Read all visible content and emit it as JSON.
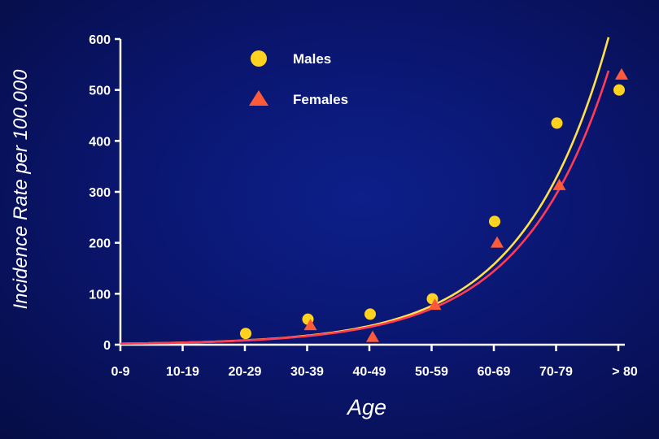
{
  "chart_data": {
    "type": "scatter",
    "xlabel": "Age",
    "ylabel": "Incidence Rate per 100.000",
    "categories": [
      "0-9",
      "10-19",
      "20-29",
      "30-39",
      "40-49",
      "50-59",
      "60-69",
      "70-79",
      "> 80"
    ],
    "ylim": [
      0,
      600
    ],
    "yticks": [
      "0",
      "100",
      "200",
      "300",
      "400",
      "500",
      "600"
    ],
    "legend_position": "top-left",
    "series": [
      {
        "name": "Males",
        "marker": "circle",
        "color": "#ffd21f",
        "line_color": "#ffe14a",
        "points": [
          {
            "x": "20-29",
            "y": 22
          },
          {
            "x": "30-39",
            "y": 50
          },
          {
            "x": "40-49",
            "y": 60
          },
          {
            "x": "50-59",
            "y": 90
          },
          {
            "x": "60-69",
            "y": 242
          },
          {
            "x": "70-79",
            "y": 435
          },
          {
            "x": "> 80",
            "y": 500
          }
        ]
      },
      {
        "name": "Females",
        "marker": "triangle",
        "color": "#ff5a3a",
        "line_color": "#ff3b55",
        "points": [
          {
            "x": "30-39",
            "y": 38
          },
          {
            "x": "40-49",
            "y": 15
          },
          {
            "x": "50-59",
            "y": 78
          },
          {
            "x": "60-69",
            "y": 200
          },
          {
            "x": "70-79",
            "y": 313
          },
          {
            "x": "> 80",
            "y": 530
          }
        ]
      }
    ],
    "trend_lines": [
      {
        "series": "Males",
        "y_start": 2,
        "y_end": 615
      },
      {
        "series": "Females",
        "y_start": 2,
        "y_end": 548
      }
    ]
  }
}
